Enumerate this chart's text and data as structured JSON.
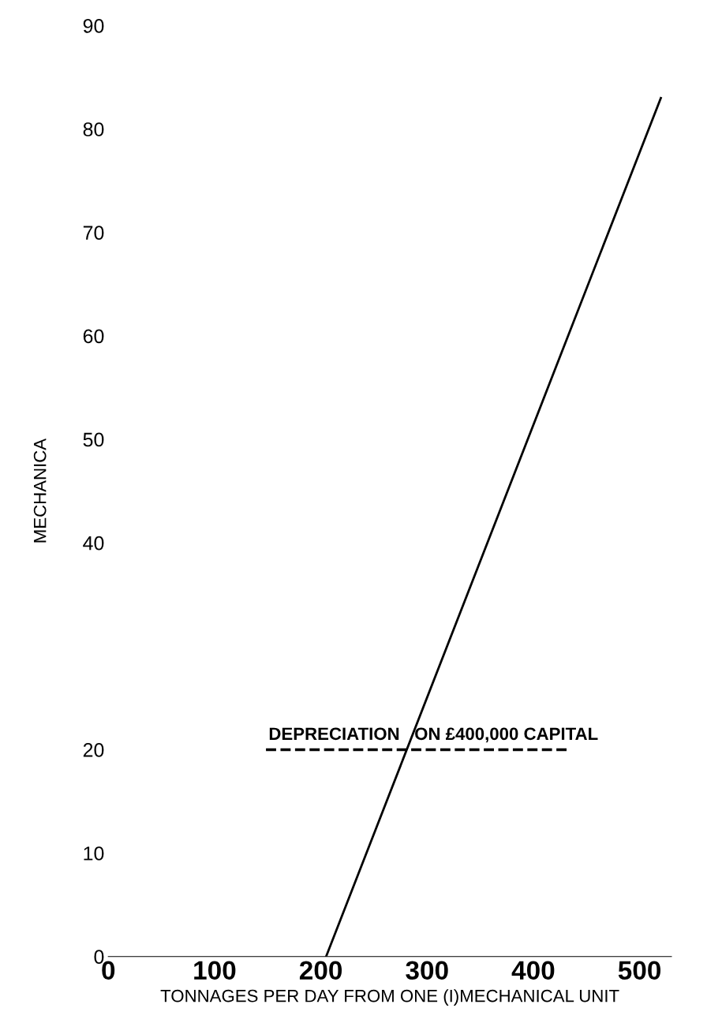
{
  "chart_data": {
    "type": "line",
    "xlabel": "TONNAGES PER DAY FROM ONE (I)MECHANICAL UNIT",
    "ylabel": "MECHANICA",
    "x": [
      205,
      520
    ],
    "series": [
      {
        "color": "#000000",
        "values": [
          0,
          83
        ]
      }
    ],
    "xlim": [
      0,
      530
    ],
    "xticks": [
      0,
      100,
      200,
      300,
      400,
      500
    ],
    "ylim": [
      0,
      90
    ],
    "yticks": [
      0,
      10,
      20,
      40,
      50,
      60,
      70,
      80,
      90
    ],
    "ref_lines": [
      {
        "axis": "y",
        "value": 20,
        "label": "DEPRECIATION   ON £400,000 CAPITAL",
        "line_style": "dashed",
        "color": "#000000"
      }
    ],
    "grid": false,
    "legend": false
  }
}
